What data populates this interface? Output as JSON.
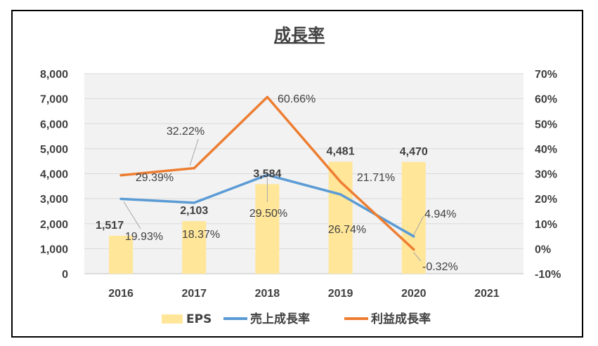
{
  "colors": {
    "eps": "#FFE699",
    "sales": "#5B9BD5",
    "profit": "#ED7D31",
    "plot_bg": "#F2F2F2",
    "grid": "#D9D9D9",
    "text": "#404040"
  },
  "chart_data": {
    "type": "bar+line",
    "title": "成長率",
    "categories": [
      "2016",
      "2017",
      "2018",
      "2019",
      "2020",
      "2021"
    ],
    "y_left": {
      "min": 0,
      "max": 8000,
      "step": 1000,
      "ticks": [
        "0",
        "1,000",
        "2,000",
        "3,000",
        "4,000",
        "5,000",
        "6,000",
        "7,000",
        "8,000"
      ]
    },
    "y_right": {
      "min": -10,
      "max": 70,
      "step": 10,
      "ticks": [
        "-10%",
        "0%",
        "10%",
        "20%",
        "30%",
        "40%",
        "50%",
        "60%",
        "70%"
      ]
    },
    "grid": true,
    "legend_position": "bottom",
    "series": [
      {
        "name": "EPS",
        "type": "bar",
        "axis": "left",
        "values": [
          1517,
          2103,
          3584,
          4481,
          4470,
          null
        ],
        "labels": [
          "1,517",
          "2,103",
          "3,584",
          "4,481",
          "4,470",
          ""
        ]
      },
      {
        "name": "売上成長率",
        "type": "line",
        "axis": "right",
        "values": [
          19.93,
          18.37,
          29.5,
          21.71,
          4.94,
          null
        ],
        "labels": [
          "19.93%",
          "18.37%",
          "29.50%",
          "21.71%",
          "4.94%",
          ""
        ]
      },
      {
        "name": "利益成長率",
        "type": "line",
        "axis": "right",
        "values": [
          29.39,
          32.22,
          60.66,
          26.74,
          -0.32,
          null
        ],
        "labels": [
          "29.39%",
          "32.22%",
          "60.66%",
          "26.74%",
          "-0.32%",
          ""
        ]
      }
    ]
  }
}
